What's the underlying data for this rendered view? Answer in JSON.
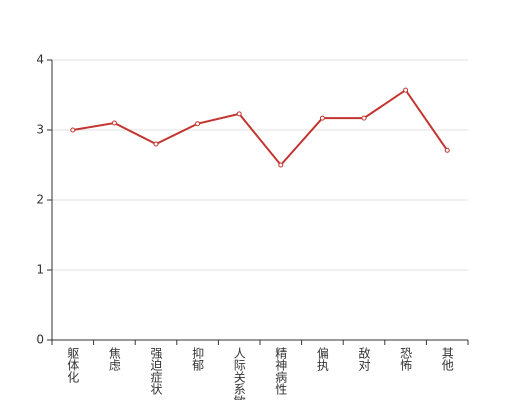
{
  "chart_data": {
    "type": "line",
    "categories": [
      "躯体化",
      "焦虑",
      "强迫症状",
      "抑郁",
      "人际关系敏感",
      "精神病性",
      "偏执",
      "敌对",
      "恐怖",
      "其他"
    ],
    "series": [
      {
        "color": "#c23531",
        "values": [
          3.0,
          3.1,
          2.8,
          3.09,
          3.23,
          2.5,
          3.17,
          3.17,
          3.57,
          2.71
        ]
      }
    ],
    "ylim": [
      0,
      4
    ],
    "yticks": [
      0,
      1,
      2,
      3,
      4
    ],
    "grid": true
  }
}
